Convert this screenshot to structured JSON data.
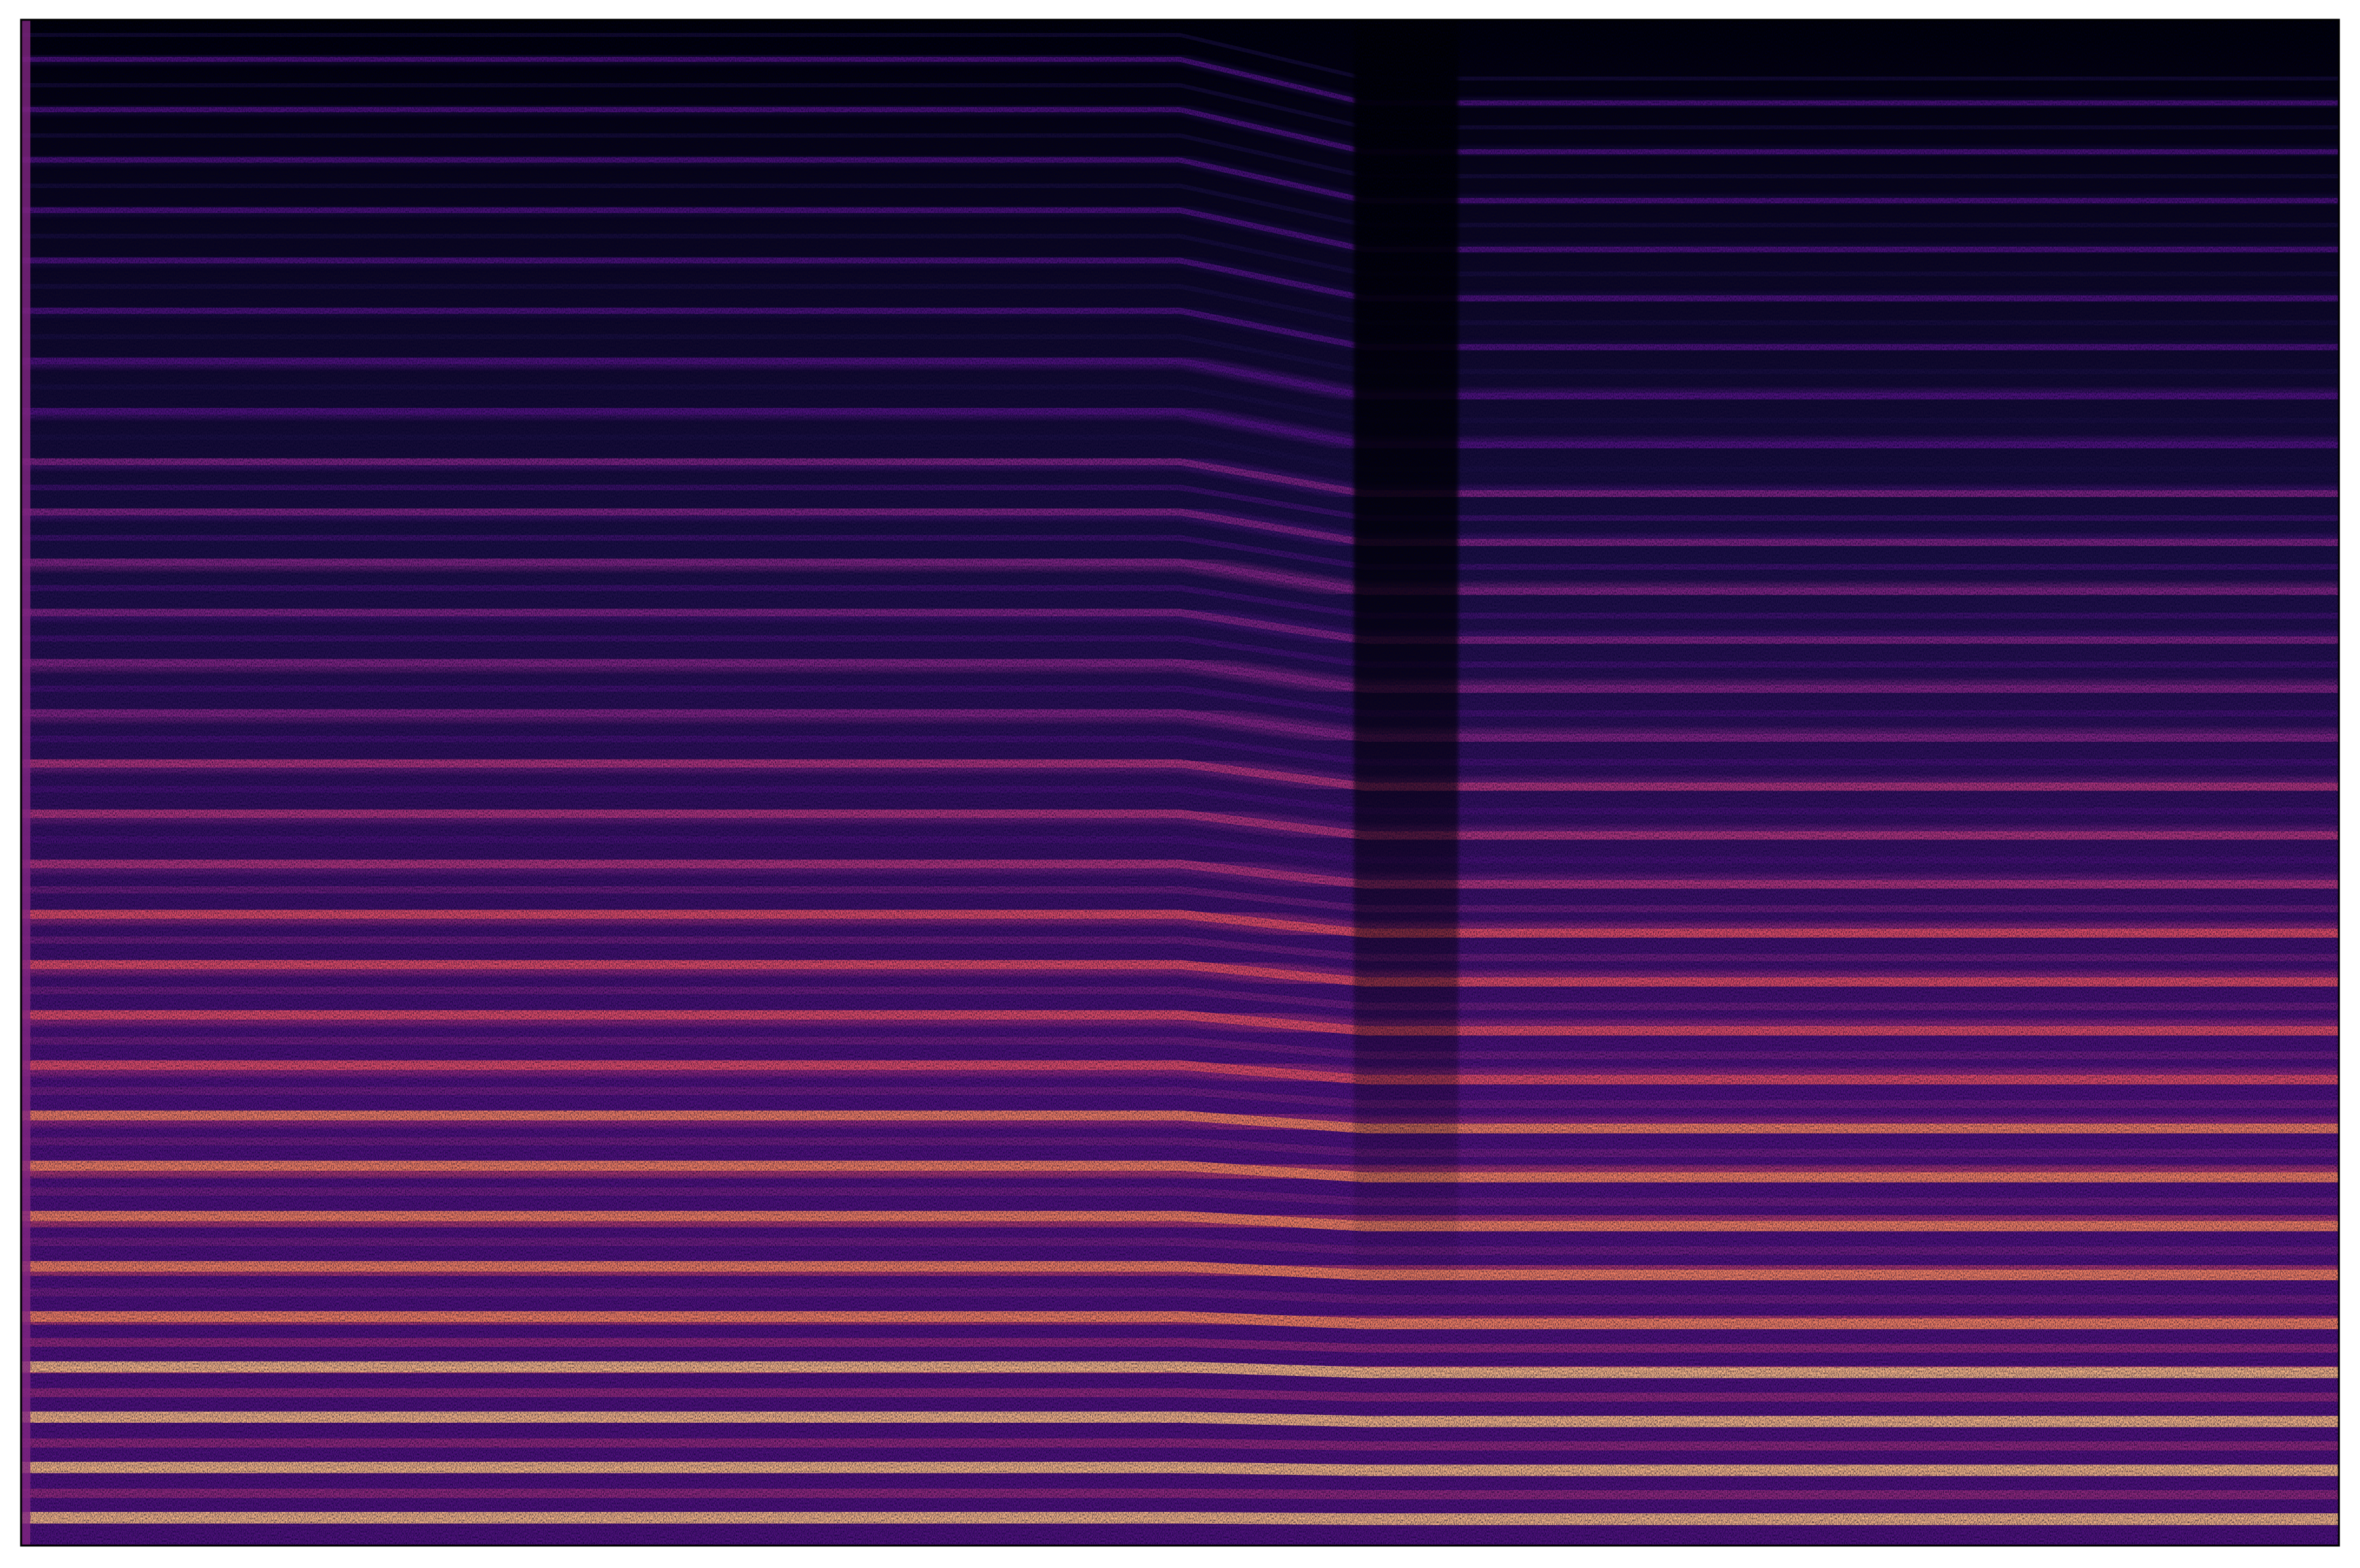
{
  "chart_data": {
    "type": "spectrogram",
    "colormap": [
      "#000004",
      "#1c1044",
      "#4f127b",
      "#812581",
      "#b5367a",
      "#e55064",
      "#fb8761",
      "#fec287",
      "#fcfdbf"
    ]
  }
}
